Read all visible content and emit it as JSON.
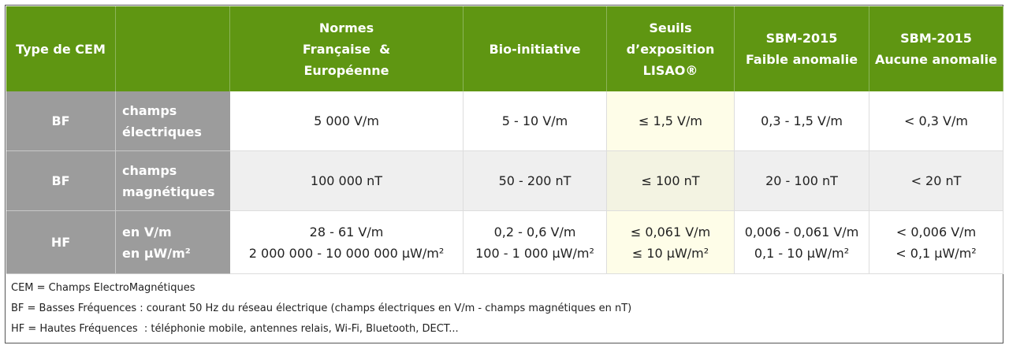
{
  "header": {
    "cells": [
      [
        "Type de CEM"
      ],
      [
        "Normes",
        "Française  &",
        "Européenne"
      ],
      [
        "Bio-initiative"
      ],
      [
        "Seuils",
        "d’exposition",
        "LISAO®"
      ],
      [
        "SBM-2015",
        "Faible anomalie"
      ],
      [
        "SBM-2015",
        "Aucune anomalie"
      ]
    ]
  },
  "rows": [
    {
      "type": "BF",
      "label": [
        "champs",
        "électriques"
      ],
      "values": [
        [
          "5 000 V/m"
        ],
        [
          "5 - 10 V/m"
        ],
        [
          "≤ 1,5 V/m"
        ],
        [
          "0,3 - 1,5 V/m"
        ],
        [
          "< 0,3 V/m"
        ]
      ]
    },
    {
      "type": "BF",
      "label": [
        "champs",
        "magnétiques"
      ],
      "values": [
        [
          "100 000 nT"
        ],
        [
          "50 - 200 nT"
        ],
        [
          "≤ 100 nT"
        ],
        [
          "20 - 100 nT"
        ],
        [
          "< 20 nT"
        ]
      ]
    },
    {
      "type": "HF",
      "label": [
        "en V/m",
        "en µW/m²"
      ],
      "values": [
        [
          "28 - 61 V/m",
          "2 000 000 - 10 000 000 µW/m²"
        ],
        [
          "0,2 - 0,6 V/m",
          "100 - 1 000 µW/m²"
        ],
        [
          "≤ 0,061 V/m",
          "≤ 10 µW/m²"
        ],
        [
          "0,006 - 0,061 V/m",
          "0,1 - 10 µW/m²"
        ],
        [
          "< 0,006 V/m",
          "< 0,1 µW/m²"
        ]
      ]
    }
  ],
  "footer": {
    "notes": [
      "CEM = Champs ElectroMagnétiques",
      "BF = Basses Fréquences : courant 50 Hz du réseau électrique (champs électriques en V/m - champs magnétiques en nT)",
      "HF = Hautes Fréquences  : téléphonie mobile, antennes relais, Wi-Fi, Bluetooth, DECT..."
    ]
  }
}
